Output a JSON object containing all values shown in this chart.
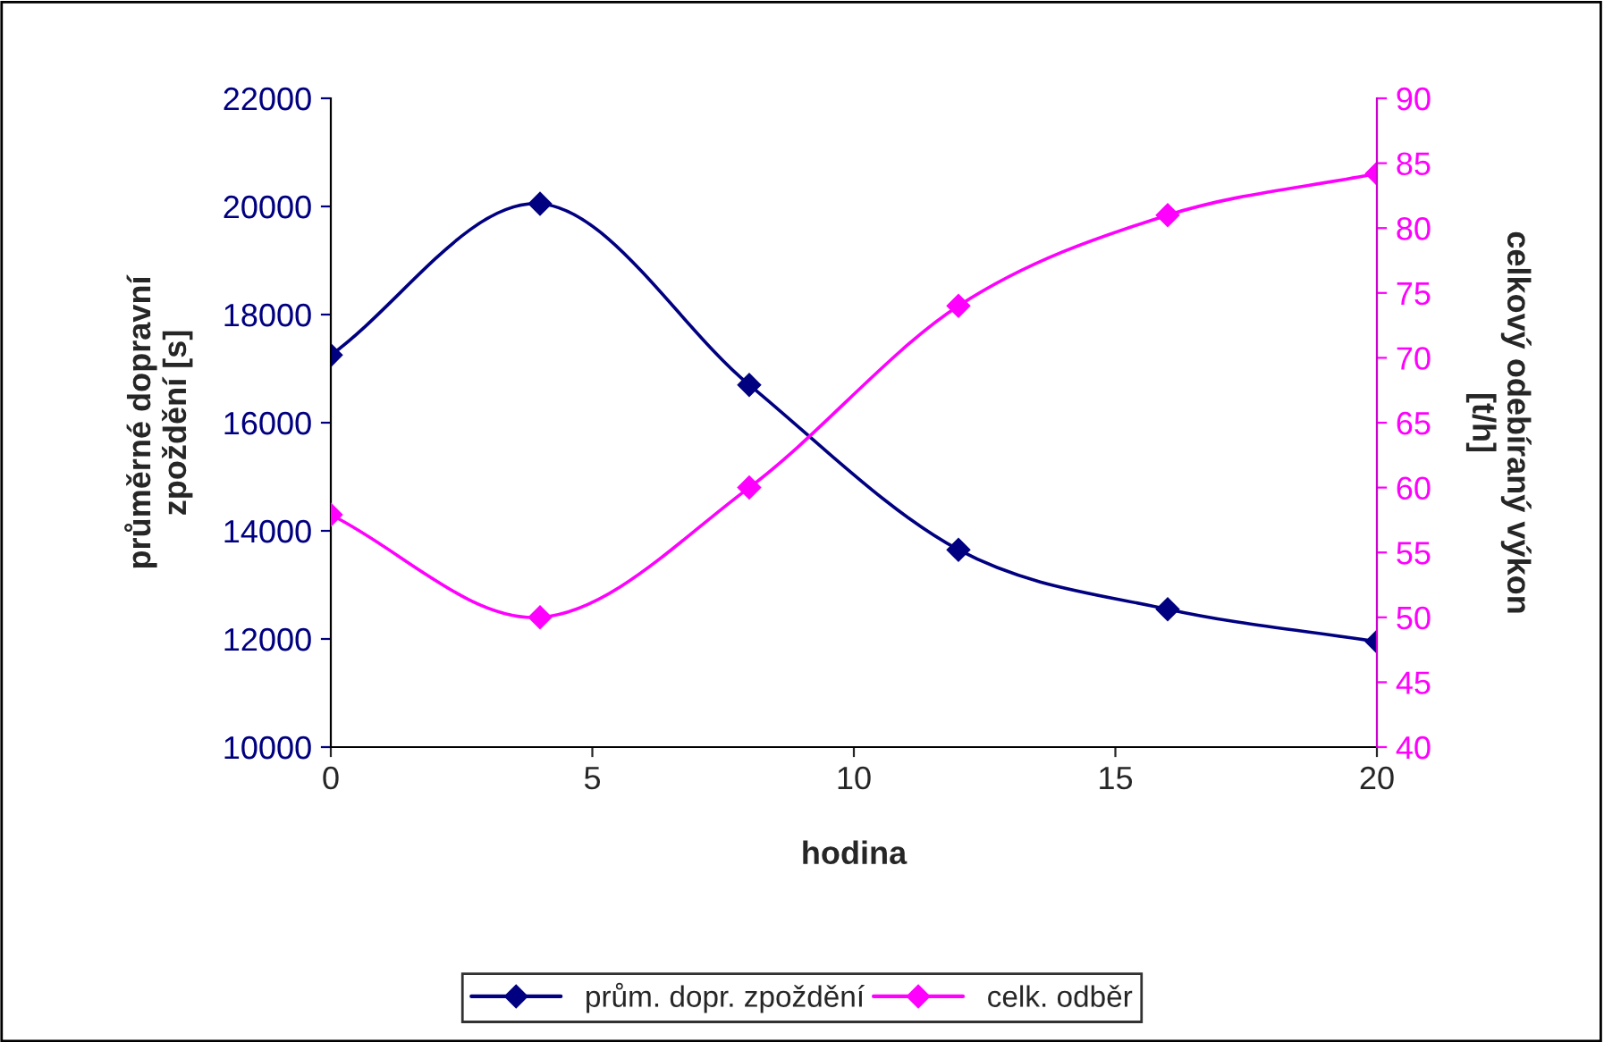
{
  "chart_data": {
    "type": "line",
    "xlabel": "hodina",
    "ylabel": "průměrné dopravní\nzpoždění [s]",
    "y2label": "celkový odebíraný výkon\n[t/h]",
    "x": [
      0,
      4,
      8,
      12,
      16,
      20
    ],
    "series": [
      {
        "name": "prům. dopr. zpoždění",
        "color": "#000080",
        "values": [
          17250,
          20050,
          16700,
          13650,
          12550,
          11950
        ]
      },
      {
        "name": "celk. odběr",
        "color": "#ff00ff",
        "axis": "y2",
        "values": [
          57.9,
          50,
          60,
          74,
          81,
          84.2
        ]
      }
    ],
    "xlim": [
      0,
      20
    ],
    "xticks": [
      0,
      5,
      10,
      15,
      20
    ],
    "ylim": [
      10000,
      22000
    ],
    "yticks": [
      10000,
      12000,
      14000,
      16000,
      18000,
      20000,
      22000
    ],
    "y2lim": [
      40,
      90
    ],
    "y2ticks": [
      40,
      45,
      50,
      55,
      60,
      65,
      70,
      75,
      80,
      85,
      90
    ],
    "grid": false,
    "legend": "bottom",
    "marker": "diamond",
    "line_style": "solid"
  }
}
